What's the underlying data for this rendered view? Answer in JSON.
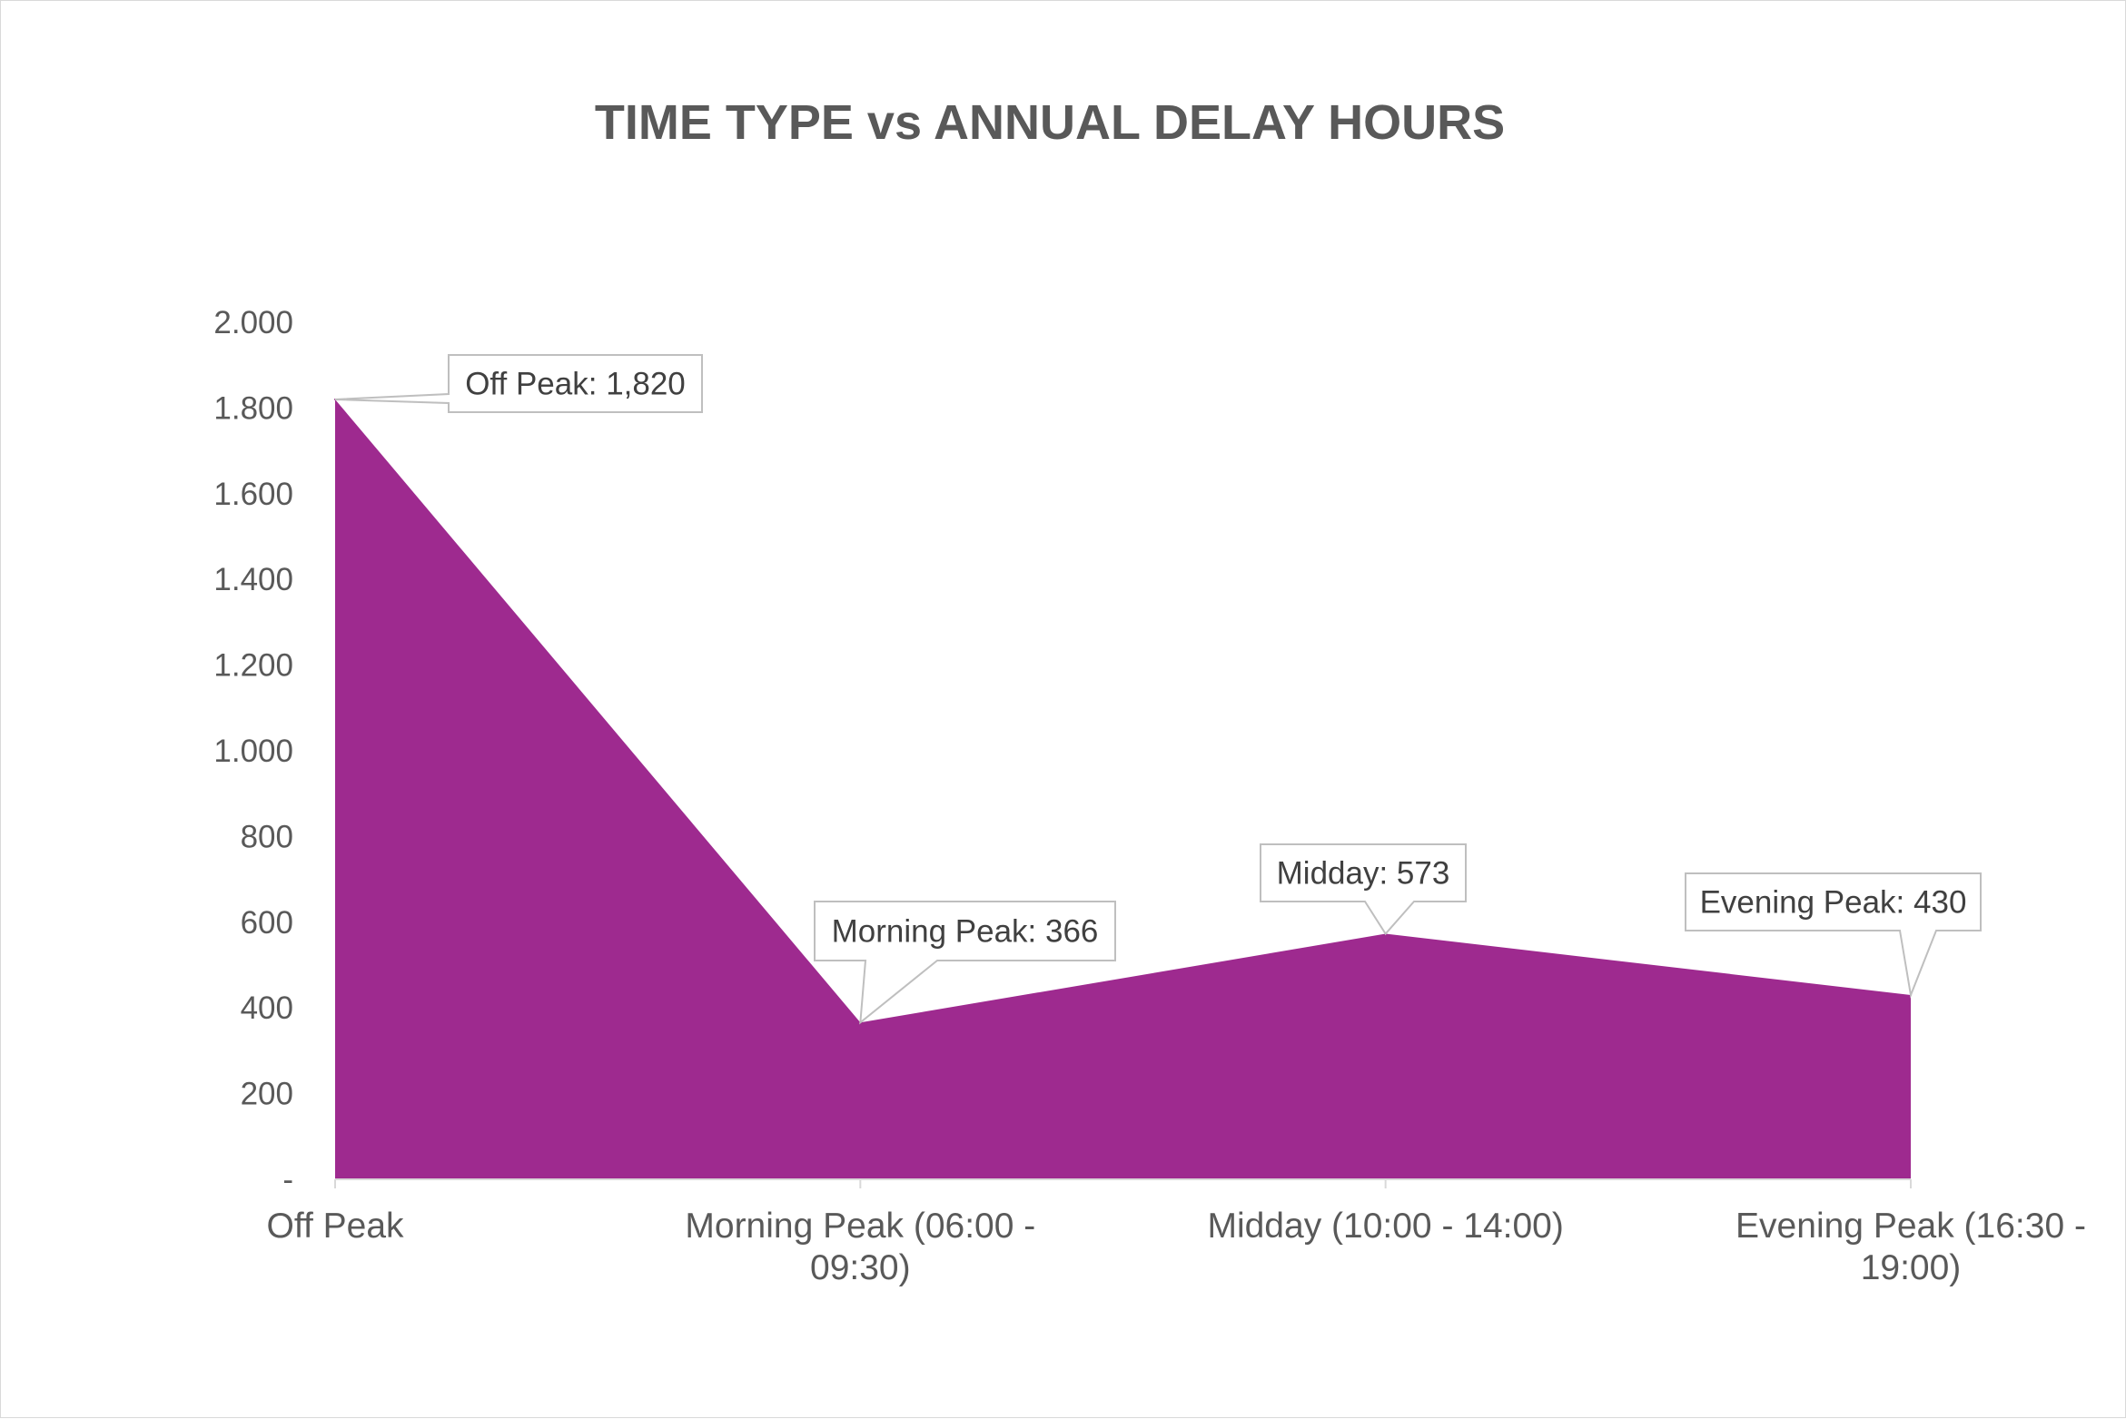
{
  "chart_data": {
    "type": "area",
    "title": "TIME TYPE vs ANNUAL DELAY HOURS",
    "xlabel": "",
    "ylabel": "",
    "categories": [
      "Off Peak",
      "Morning Peak (06:00 - 09:30)",
      "Midday (10:00 - 14:00)",
      "Evening Peak (16:30 - 19:00)"
    ],
    "category_lines": [
      [
        "Off Peak"
      ],
      [
        "Morning Peak (06:00 -",
        "09:30)"
      ],
      [
        "Midday (10:00 - 14:00)"
      ],
      [
        "Evening Peak (16:30 -",
        "19:00)"
      ]
    ],
    "series": [
      {
        "values": [
          1820,
          366,
          573,
          430
        ],
        "color": "#9e2a8f"
      }
    ],
    "ylim": [
      0,
      2000
    ],
    "yticks": [
      0,
      200,
      400,
      600,
      800,
      1000,
      1200,
      1400,
      1600,
      1800,
      2000
    ],
    "ytick_labels": [
      "-",
      "200",
      "400",
      "600",
      "800",
      "1.000",
      "1.200",
      "1.400",
      "1.600",
      "1.800",
      "2.000"
    ],
    "data_labels": [
      "Off Peak: 1,820",
      "Morning Peak: 366",
      "Midday: 573",
      "Evening Peak: 430"
    ],
    "grid": false,
    "legend": "none"
  }
}
